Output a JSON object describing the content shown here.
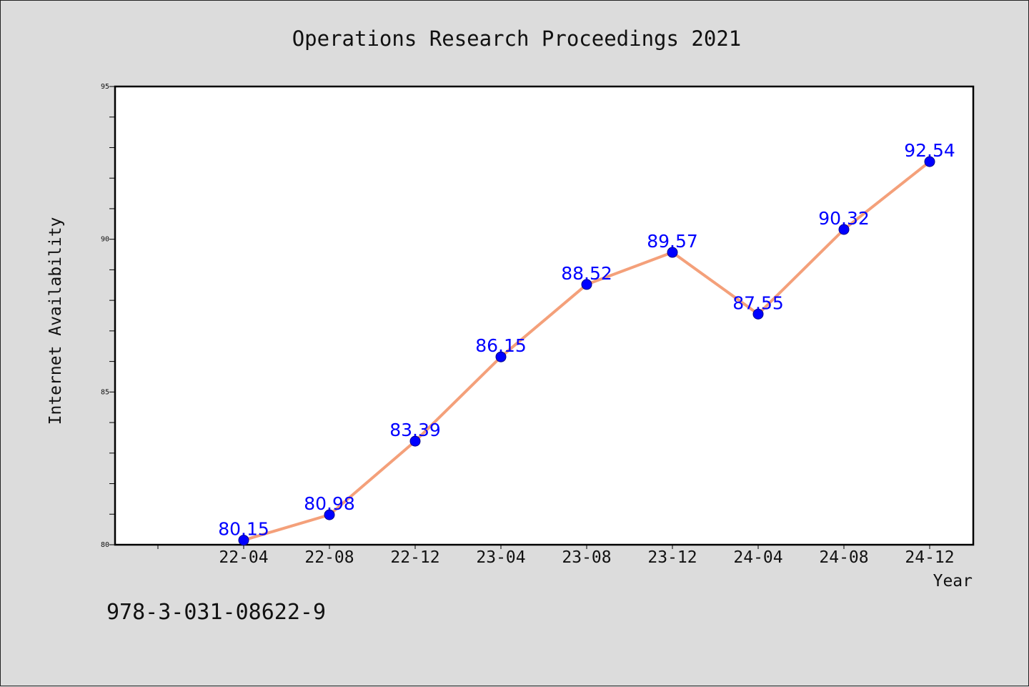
{
  "chart_data": {
    "type": "line",
    "title": "Operations Research Proceedings 2021",
    "xlabel": "Year",
    "ylabel": "Internet Availability",
    "categories": [
      "22-04",
      "22-08",
      "22-12",
      "23-04",
      "23-08",
      "23-12",
      "24-04",
      "24-08",
      "24-12"
    ],
    "values": [
      80.15,
      80.98,
      83.39,
      86.15,
      88.52,
      89.57,
      87.55,
      90.32,
      92.54
    ],
    "data_labels": [
      "80.15",
      "80.98",
      "83.39",
      "86.15",
      "88.52",
      "89.57",
      "87.55",
      "90.32",
      "92.54"
    ],
    "ylim": [
      80,
      95
    ],
    "yticks": [
      80,
      85,
      90,
      95
    ],
    "ytick_labels": [
      "80",
      "85",
      "90",
      "95"
    ],
    "grid": false,
    "legend": "none",
    "colors": {
      "line": "#f4a07a",
      "marker": "#0000ff",
      "data_label": "#0000ff",
      "background": "#dcdcdc",
      "plot_area": "#ffffff"
    }
  },
  "footer": {
    "isbn": "978-3-031-08622-9"
  }
}
